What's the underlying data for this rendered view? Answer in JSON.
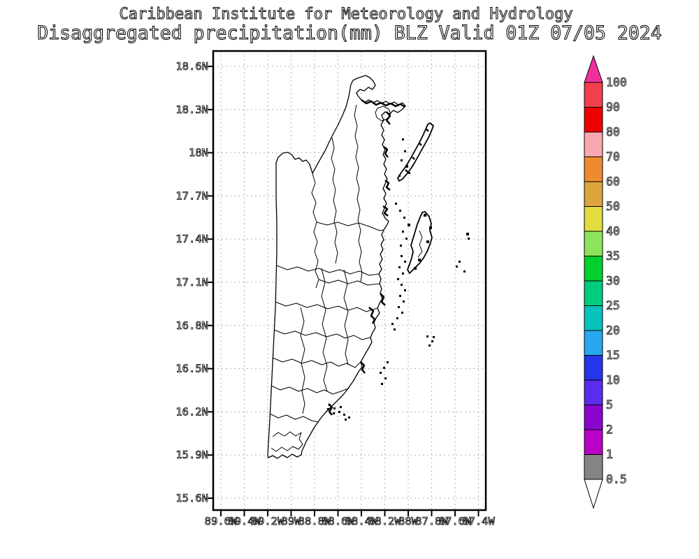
{
  "title": {
    "line1": "Caribbean Institute for Meteorology and Hydrology",
    "line2": "Disaggregated precipitation(mm) BLZ Valid 01Z 07/05 2024"
  },
  "map_axes": {
    "lat_labels": [
      "18.6N",
      "18.3N",
      "18N",
      "17.7N",
      "17.4N",
      "17.1N",
      "16.8N",
      "16.5N",
      "16.2N",
      "15.9N",
      "15.6N"
    ],
    "lon_labels": [
      "89.6W",
      "89.4W",
      "89.2W",
      "89W",
      "88.8W",
      "88.6W",
      "88.4W",
      "88.2W",
      "88W",
      "87.8W",
      "87.6W",
      "87.4W"
    ]
  },
  "colorbar": {
    "units": "mm",
    "tick_labels": [
      "100",
      "90",
      "80",
      "70",
      "60",
      "50",
      "40",
      "35",
      "30",
      "25",
      "20",
      "15",
      "10",
      "5",
      "2",
      "1",
      "0.5"
    ],
    "segments": [
      {
        "from": 90,
        "to": 100,
        "color": "#F2404E"
      },
      {
        "from": 80,
        "to": 90,
        "color": "#F10000"
      },
      {
        "from": 70,
        "to": 80,
        "color": "#F9A7B0"
      },
      {
        "from": 60,
        "to": 70,
        "color": "#EE8B2F"
      },
      {
        "from": 50,
        "to": 60,
        "color": "#DDA43C"
      },
      {
        "from": 40,
        "to": 50,
        "color": "#E2DC3E"
      },
      {
        "from": 35,
        "to": 40,
        "color": "#8BE45A"
      },
      {
        "from": 30,
        "to": 35,
        "color": "#00D02E"
      },
      {
        "from": 25,
        "to": 30,
        "color": "#00CC7E"
      },
      {
        "from": 20,
        "to": 25,
        "color": "#06C3BC"
      },
      {
        "from": 15,
        "to": 20,
        "color": "#28A8F0"
      },
      {
        "from": 10,
        "to": 15,
        "color": "#2435EA"
      },
      {
        "from": 5,
        "to": 10,
        "color": "#5A2CEE"
      },
      {
        "from": 2,
        "to": 5,
        "color": "#8A06CE"
      },
      {
        "from": 1,
        "to": 2,
        "color": "#BA00C4"
      },
      {
        "from": 0.5,
        "to": 1,
        "color": "#848484"
      }
    ],
    "over_arrow_color": "#F0309F",
    "under_arrow_color": "#FFFFFF"
  }
}
